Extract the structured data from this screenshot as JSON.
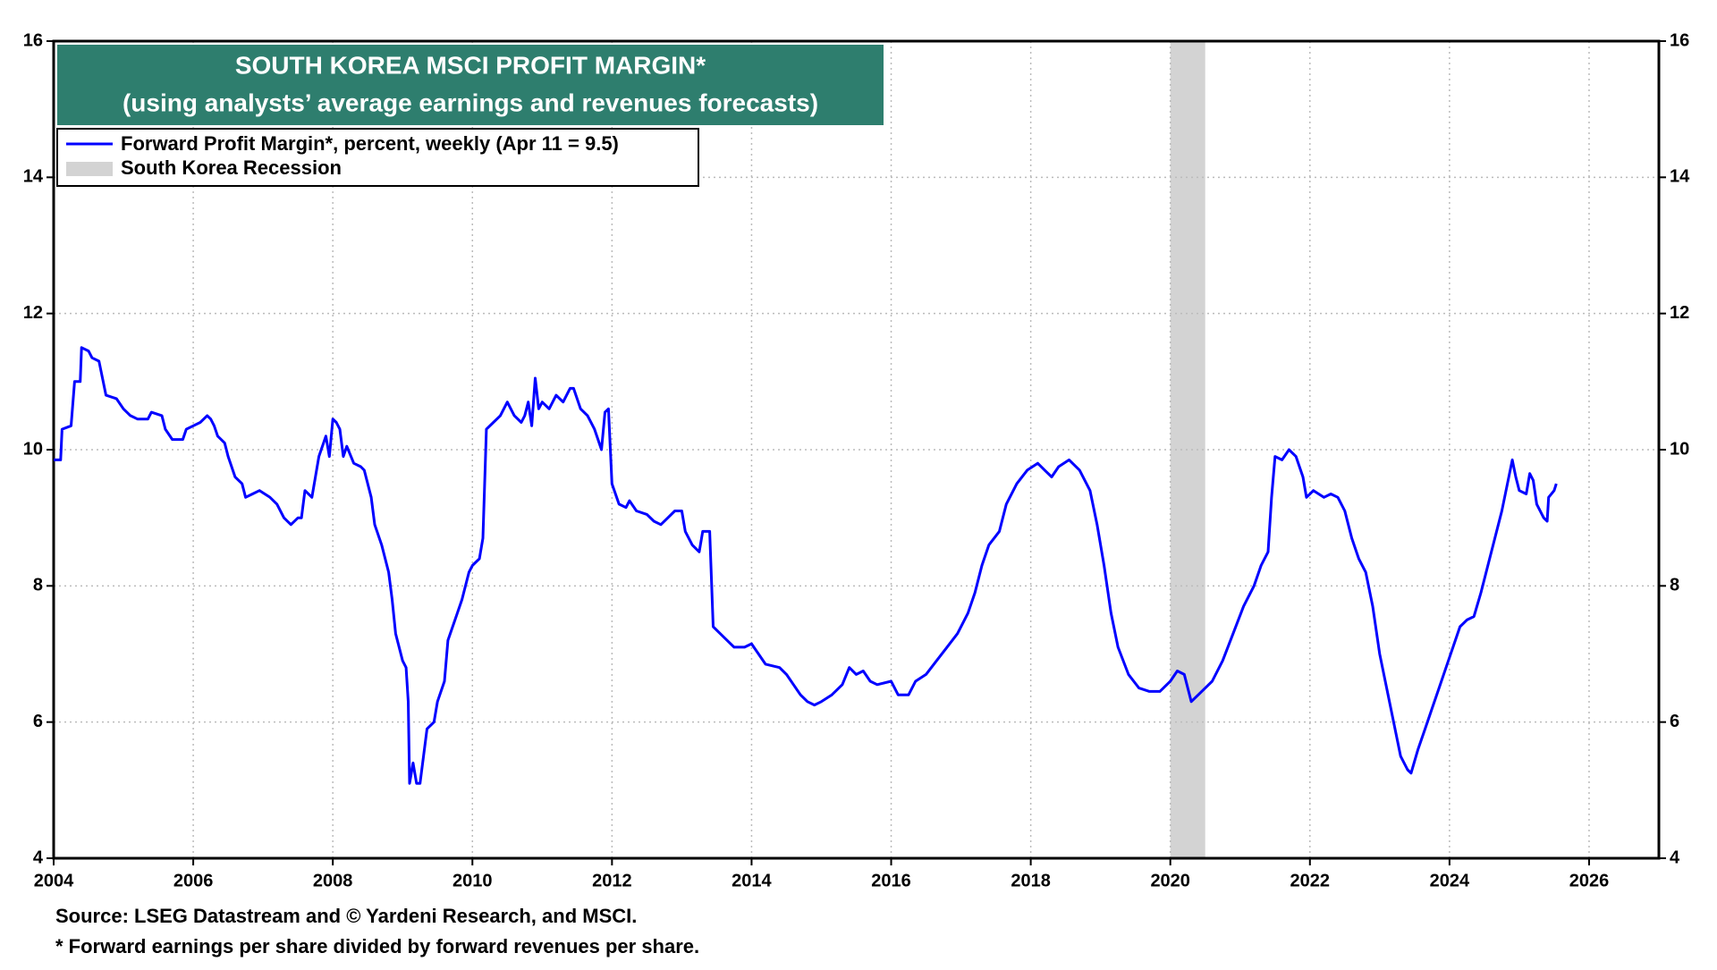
{
  "chart_data": {
    "type": "line",
    "title": "SOUTH KOREA MSCI PROFIT MARGIN*",
    "subtitle": "(using analysts’ average earnings and revenues forecasts)",
    "source": "Source: LSEG Datastream and © Yardeni Research, and MSCI.",
    "note": "* Forward earnings per share divided by forward revenues per share.",
    "xlim": [
      2004,
      2027
    ],
    "xticks": [
      2004,
      2006,
      2008,
      2010,
      2012,
      2014,
      2016,
      2018,
      2020,
      2022,
      2024,
      2026
    ],
    "ylim": [
      4,
      16
    ],
    "yticks": [
      4,
      6,
      8,
      10,
      12,
      14,
      16
    ],
    "y2lim": [
      4,
      16
    ],
    "y2ticks": [
      4,
      6,
      8,
      10,
      12,
      14,
      16
    ],
    "grid": true,
    "recessions": [
      {
        "name": "South Korea Recession",
        "start": 2020,
        "end": 2020.5,
        "color": "#d3d3d3"
      }
    ],
    "series": [
      {
        "name": "Forward Profit Margin*, percent, weekly (Apr 11 = 9.5)",
        "color": "#0000ff",
        "x": [
          2004.0,
          2004.1,
          2004.12,
          2004.25,
          2004.3,
          2004.38,
          2004.4,
          2004.5,
          2004.55,
          2004.65,
          2004.7,
          2004.75,
          2004.9,
          2005.0,
          2005.1,
          2005.2,
          2005.35,
          2005.4,
          2005.55,
          2005.6,
          2005.7,
          2005.85,
          2005.9,
          2006.0,
          2006.1,
          2006.2,
          2006.25,
          2006.3,
          2006.35,
          2006.45,
          2006.5,
          2006.6,
          2006.7,
          2006.75,
          2006.85,
          2006.95,
          2007.1,
          2007.2,
          2007.3,
          2007.4,
          2007.5,
          2007.55,
          2007.6,
          2007.7,
          2007.75,
          2007.8,
          2007.9,
          2007.95,
          2008.0,
          2008.05,
          2008.1,
          2008.15,
          2008.2,
          2008.3,
          2008.4,
          2008.45,
          2008.55,
          2008.6,
          2008.7,
          2008.8,
          2008.85,
          2008.9,
          2008.95,
          2009.0,
          2009.05,
          2009.08,
          2009.1,
          2009.15,
          2009.2,
          2009.25,
          2009.3,
          2009.35,
          2009.45,
          2009.5,
          2009.6,
          2009.65,
          2009.75,
          2009.85,
          2009.95,
          2010.0,
          2010.1,
          2010.15,
          2010.2,
          2010.3,
          2010.4,
          2010.5,
          2010.55,
          2010.6,
          2010.7,
          2010.75,
          2010.8,
          2010.85,
          2010.9,
          2010.95,
          2011.0,
          2011.1,
          2011.2,
          2011.3,
          2011.4,
          2011.45,
          2011.55,
          2011.65,
          2011.75,
          2011.85,
          2011.9,
          2011.95,
          2012.0,
          2012.1,
          2012.2,
          2012.25,
          2012.35,
          2012.5,
          2012.6,
          2012.7,
          2012.8,
          2012.9,
          2013.0,
          2013.05,
          2013.15,
          2013.25,
          2013.3,
          2013.4,
          2013.45,
          2013.55,
          2013.65,
          2013.75,
          2013.9,
          2014.0,
          2014.1,
          2014.2,
          2014.4,
          2014.5,
          2014.6,
          2014.7,
          2014.8,
          2014.9,
          2015.0,
          2015.15,
          2015.3,
          2015.4,
          2015.5,
          2015.6,
          2015.7,
          2015.8,
          2016.0,
          2016.1,
          2016.25,
          2016.35,
          2016.5,
          2016.65,
          2016.8,
          2016.95,
          2017.1,
          2017.2,
          2017.3,
          2017.4,
          2017.55,
          2017.65,
          2017.8,
          2017.95,
          2018.1,
          2018.2,
          2018.3,
          2018.4,
          2018.55,
          2018.7,
          2018.85,
          2018.95,
          2019.05,
          2019.15,
          2019.25,
          2019.4,
          2019.55,
          2019.7,
          2019.85,
          2020.0,
          2020.1,
          2020.2,
          2020.3,
          2020.45,
          2020.6,
          2020.75,
          2020.9,
          2021.05,
          2021.2,
          2021.3,
          2021.4,
          2021.45,
          2021.5,
          2021.6,
          2021.7,
          2021.8,
          2021.9,
          2021.95,
          2022.05,
          2022.2,
          2022.3,
          2022.4,
          2022.5,
          2022.6,
          2022.7,
          2022.8,
          2022.9,
          2023.0,
          2023.1,
          2023.2,
          2023.3,
          2023.4,
          2023.45,
          2023.55,
          2023.65,
          2023.75,
          2023.85,
          2023.95,
          2024.05,
          2024.15,
          2024.25,
          2024.35,
          2024.45,
          2024.55,
          2024.65,
          2024.75,
          2024.85,
          2024.9,
          2024.95,
          2025.0,
          2025.1,
          2025.15,
          2025.2,
          2025.25,
          2025.35,
          2025.4,
          2025.42,
          2025.5,
          2025.53
        ],
        "values": [
          9.85,
          9.85,
          10.3,
          10.35,
          11.0,
          11.0,
          11.5,
          11.45,
          11.35,
          11.3,
          11.05,
          10.8,
          10.75,
          10.6,
          10.5,
          10.45,
          10.45,
          10.55,
          10.5,
          10.3,
          10.15,
          10.15,
          10.3,
          10.35,
          10.4,
          10.5,
          10.45,
          10.35,
          10.2,
          10.1,
          9.9,
          9.6,
          9.5,
          9.3,
          9.35,
          9.4,
          9.3,
          9.2,
          9.0,
          8.9,
          9.0,
          9.0,
          9.4,
          9.3,
          9.6,
          9.9,
          10.2,
          9.9,
          10.45,
          10.4,
          10.3,
          9.9,
          10.05,
          9.8,
          9.75,
          9.7,
          9.3,
          8.9,
          8.6,
          8.2,
          7.8,
          7.3,
          7.1,
          6.9,
          6.8,
          6.3,
          5.1,
          5.4,
          5.1,
          5.1,
          5.5,
          5.9,
          6.0,
          6.3,
          6.6,
          7.2,
          7.5,
          7.8,
          8.2,
          8.3,
          8.4,
          8.7,
          10.3,
          10.4,
          10.5,
          10.7,
          10.6,
          10.5,
          10.4,
          10.5,
          10.7,
          10.35,
          11.05,
          10.6,
          10.7,
          10.6,
          10.8,
          10.7,
          10.9,
          10.9,
          10.6,
          10.5,
          10.3,
          10.0,
          10.55,
          10.6,
          9.5,
          9.2,
          9.15,
          9.25,
          9.1,
          9.05,
          8.95,
          8.9,
          9.0,
          9.1,
          9.1,
          8.8,
          8.6,
          8.5,
          8.8,
          8.8,
          7.4,
          7.3,
          7.2,
          7.1,
          7.1,
          7.15,
          7.0,
          6.85,
          6.8,
          6.7,
          6.55,
          6.4,
          6.3,
          6.25,
          6.3,
          6.4,
          6.55,
          6.8,
          6.7,
          6.75,
          6.6,
          6.55,
          6.6,
          6.4,
          6.4,
          6.6,
          6.7,
          6.9,
          7.1,
          7.3,
          7.6,
          7.9,
          8.3,
          8.6,
          8.8,
          9.2,
          9.5,
          9.7,
          9.8,
          9.7,
          9.6,
          9.75,
          9.85,
          9.7,
          9.4,
          8.9,
          8.3,
          7.6,
          7.1,
          6.7,
          6.5,
          6.45,
          6.45,
          6.6,
          6.75,
          6.7,
          6.3,
          6.45,
          6.6,
          6.9,
          7.3,
          7.7,
          8.0,
          8.3,
          8.5,
          9.3,
          9.9,
          9.85,
          10.0,
          9.9,
          9.6,
          9.3,
          9.4,
          9.3,
          9.35,
          9.3,
          9.1,
          8.7,
          8.4,
          8.2,
          7.7,
          7.0,
          6.5,
          6.0,
          5.5,
          5.3,
          5.25,
          5.6,
          5.9,
          6.2,
          6.5,
          6.8,
          7.1,
          7.4,
          7.5,
          7.55,
          7.9,
          8.3,
          8.7,
          9.1,
          9.6,
          9.85,
          9.6,
          9.4,
          9.35,
          9.65,
          9.55,
          9.2,
          9.0,
          8.95,
          9.3,
          9.4,
          9.5
        ]
      }
    ]
  }
}
